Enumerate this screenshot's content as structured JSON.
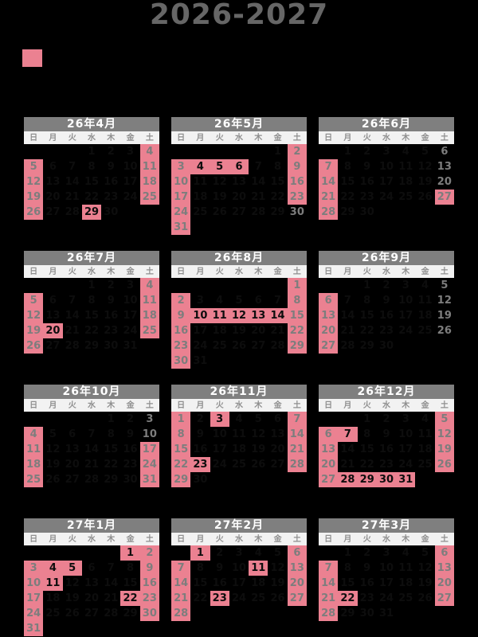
{
  "page": {
    "title": "2026-2027"
  },
  "legend": {
    "swatch_color": "#EB8191"
  },
  "weekday_labels": [
    "日",
    "月",
    "火",
    "水",
    "木",
    "金",
    "土"
  ],
  "months": [
    {
      "title": "26年4月",
      "first_weekday": 3,
      "num_days": 30,
      "holidays": [
        4,
        5,
        11,
        12,
        18,
        19,
        25,
        26,
        29
      ]
    },
    {
      "title": "26年5月",
      "first_weekday": 5,
      "num_days": 31,
      "holidays": [
        2,
        3,
        4,
        5,
        6,
        9,
        10,
        16,
        17,
        23,
        24,
        31
      ]
    },
    {
      "title": "26年6月",
      "first_weekday": 1,
      "num_days": 30,
      "holidays": [
        7,
        14,
        21,
        27,
        28
      ]
    },
    {
      "title": "26年7月",
      "first_weekday": 3,
      "num_days": 31,
      "holidays": [
        4,
        5,
        11,
        12,
        18,
        19,
        20,
        25,
        26
      ]
    },
    {
      "title": "26年8月",
      "first_weekday": 6,
      "num_days": 31,
      "holidays": [
        1,
        2,
        8,
        9,
        10,
        11,
        12,
        13,
        14,
        15,
        16,
        22,
        23,
        29,
        30
      ]
    },
    {
      "title": "26年9月",
      "first_weekday": 2,
      "num_days": 30,
      "holidays": [
        6,
        13,
        20,
        27
      ]
    },
    {
      "title": "26年10月",
      "first_weekday": 4,
      "num_days": 31,
      "holidays": [
        4,
        11,
        17,
        18,
        24,
        25,
        31
      ]
    },
    {
      "title": "26年11月",
      "first_weekday": 0,
      "num_days": 30,
      "holidays": [
        1,
        3,
        7,
        8,
        14,
        15,
        21,
        22,
        23,
        28,
        29
      ]
    },
    {
      "title": "26年12月",
      "first_weekday": 2,
      "num_days": 31,
      "holidays": [
        5,
        6,
        7,
        12,
        13,
        19,
        20,
        26,
        27,
        28,
        29,
        30,
        31
      ]
    },
    {
      "title": "27年1月",
      "first_weekday": 5,
      "num_days": 31,
      "holidays": [
        1,
        2,
        3,
        4,
        5,
        9,
        10,
        11,
        16,
        17,
        22,
        23,
        24,
        30,
        31
      ]
    },
    {
      "title": "27年2月",
      "first_weekday": 1,
      "num_days": 28,
      "holidays": [
        1,
        6,
        7,
        11,
        13,
        14,
        20,
        21,
        23,
        27,
        28
      ]
    },
    {
      "title": "27年3月",
      "first_weekday": 1,
      "num_days": 31,
      "holidays": [
        6,
        7,
        13,
        14,
        20,
        21,
        22,
        27,
        28
      ]
    }
  ],
  "colors": {
    "background": "#000000",
    "title_text": "#666666",
    "highlight": "#EB8191",
    "month_header_bg": "#7F7F7F",
    "month_header_text": "#FFFFFF",
    "weekday_bg": "#F2F2F2",
    "weekday_text": "#8F8F8F",
    "weekend_text": "#7D7D7D",
    "weekday_date_text": "#0D0D0D"
  }
}
